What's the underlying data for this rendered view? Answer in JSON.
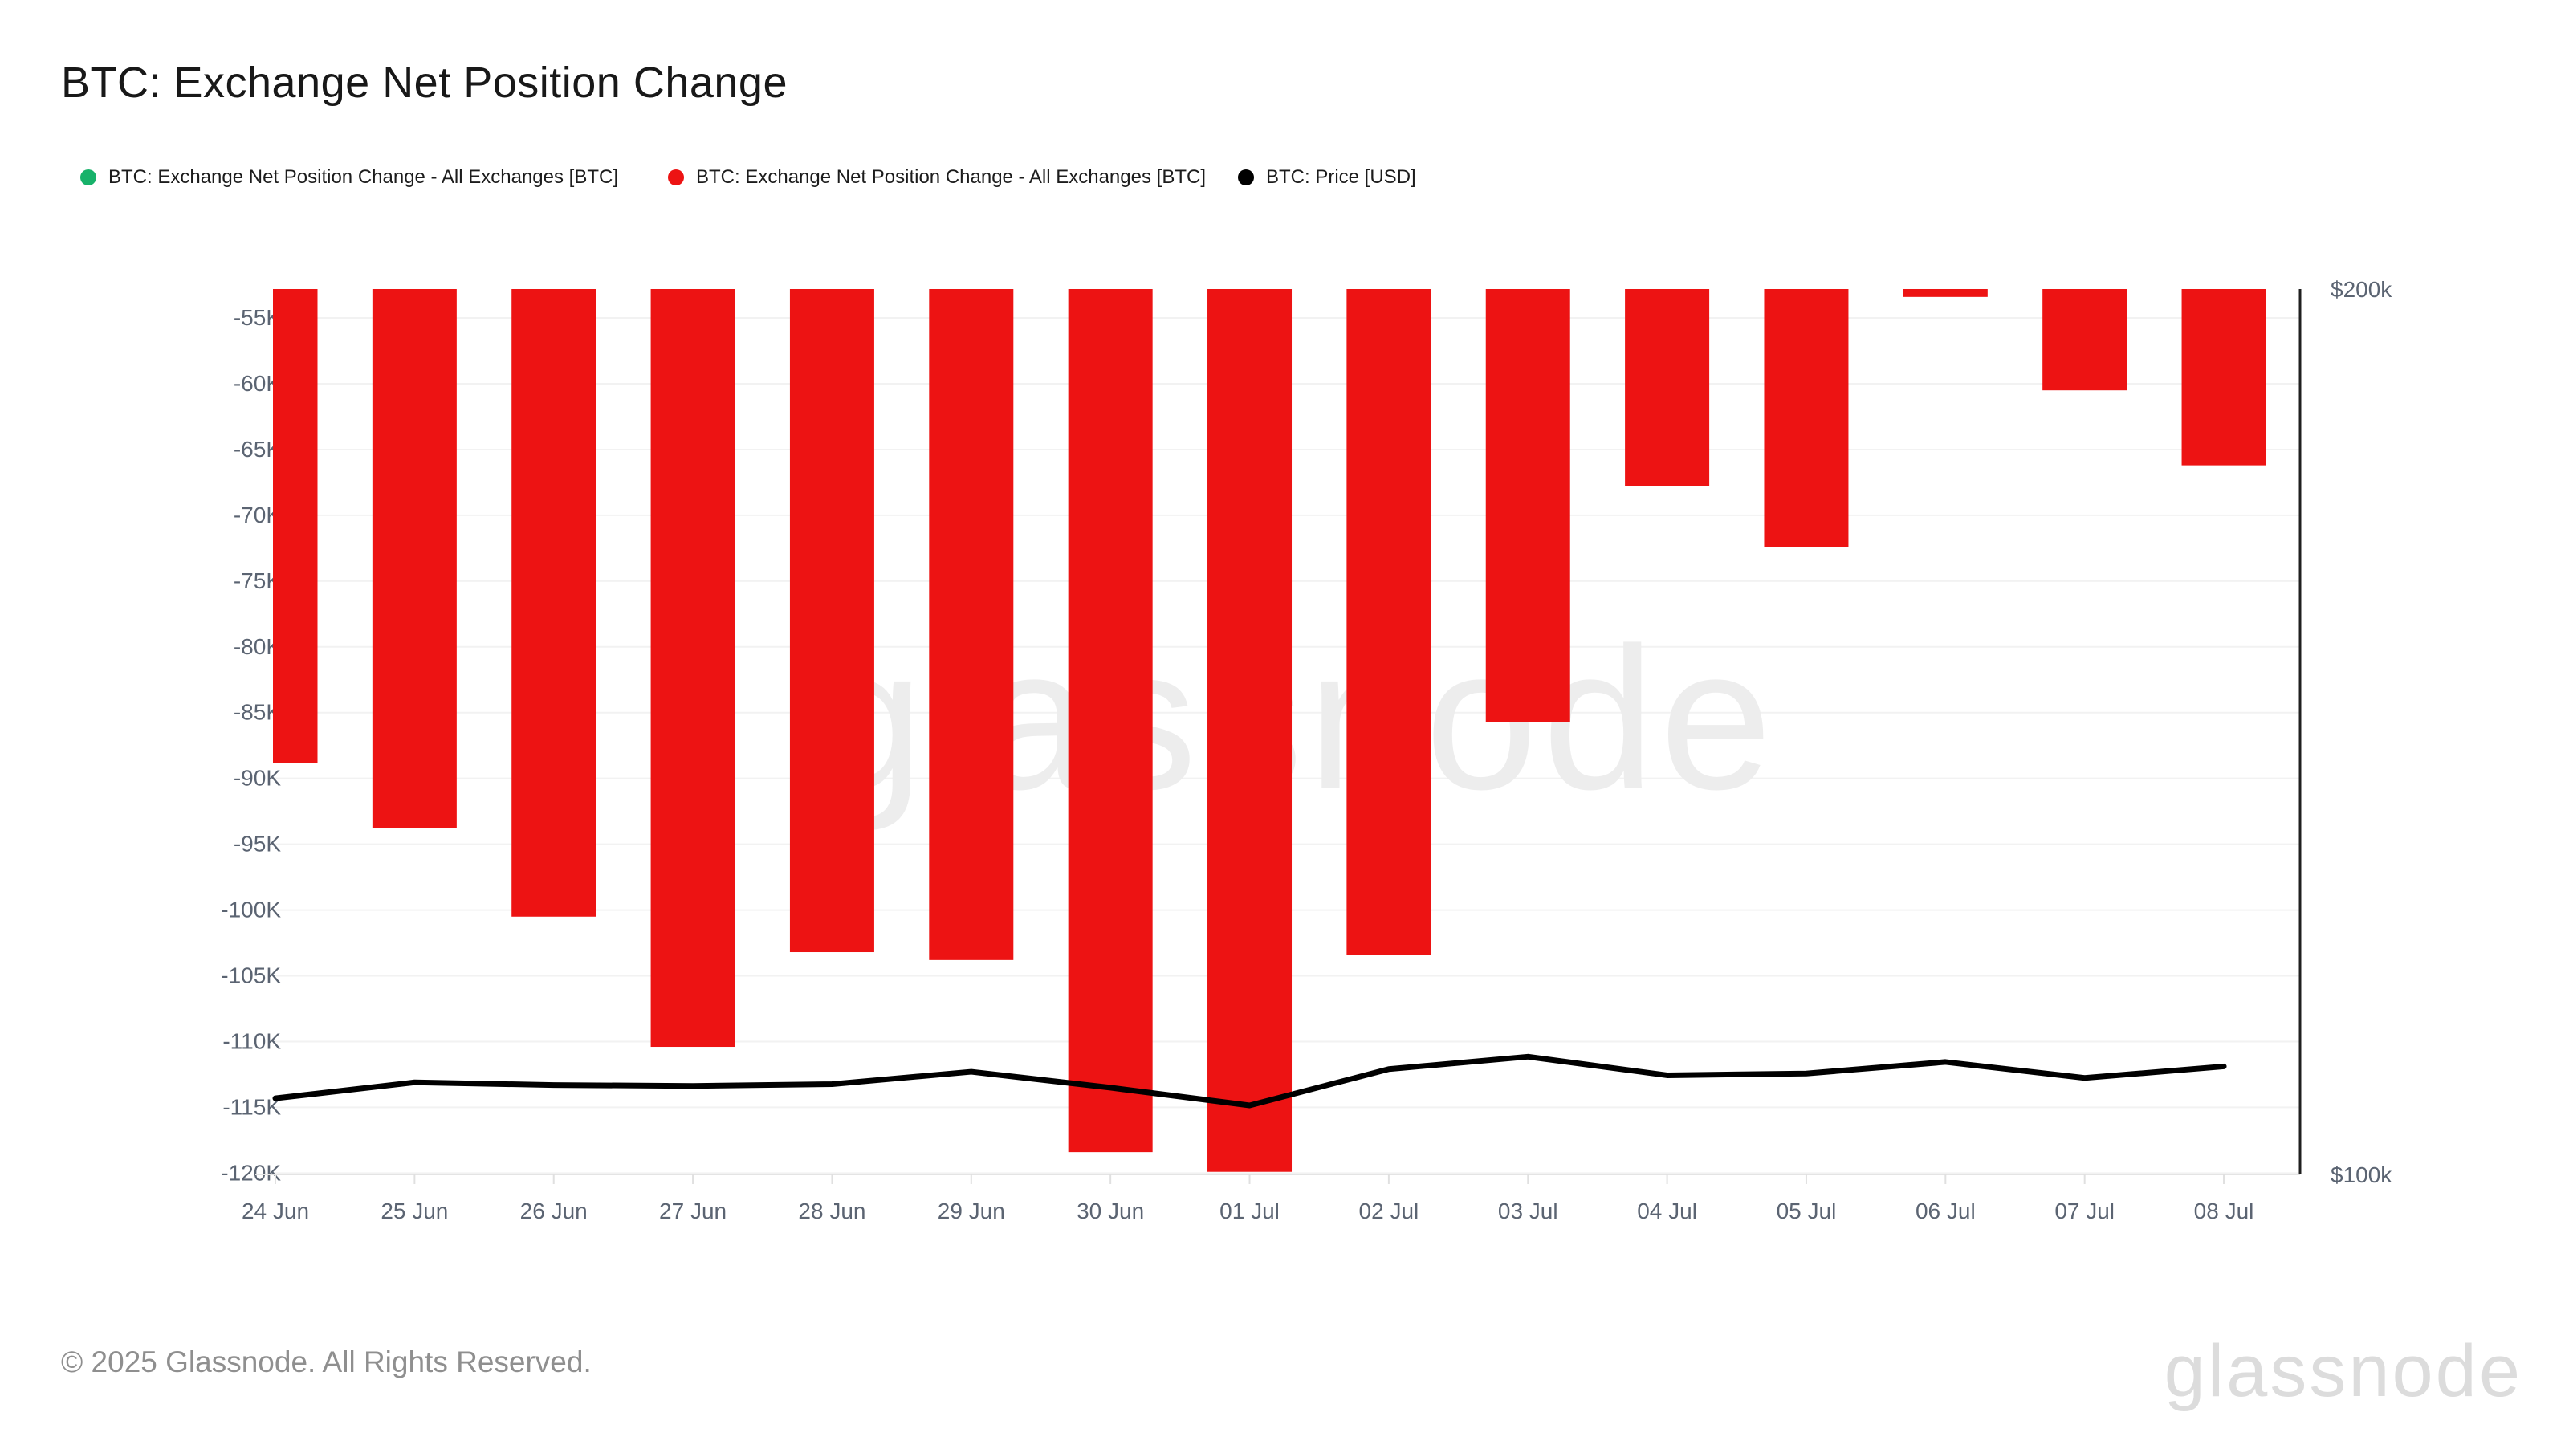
{
  "title": "BTC: Exchange Net Position Change",
  "legend": {
    "items": [
      {
        "label": "BTC: Exchange Net Position Change - All Exchanges [BTC]",
        "color": "#17b26a",
        "icon": "green-dot-icon"
      },
      {
        "label": "BTC: Exchange Net Position Change - All Exchanges [BTC]",
        "color": "#ed1313",
        "icon": "red-dot-icon"
      },
      {
        "label": "BTC: Price [USD]",
        "color": "#000000",
        "icon": "black-dot-icon"
      }
    ]
  },
  "watermark": "glassnode",
  "footer": {
    "copyright": "© 2025 Glassnode. All Rights Reserved.",
    "brand": "glassnode"
  },
  "colors": {
    "bar": "#ed1313",
    "price_line": "#000000",
    "gridline": "#f2f2f2",
    "x_axis_line": "#e4e4e4",
    "x_tick": "#e0e0e0",
    "right_axis_line": "#1f1f1f",
    "axis_label": "#5b6472",
    "watermark": "#ededed"
  },
  "chart_data": {
    "type": "bar",
    "title": "BTC: Exchange Net Position Change",
    "categories": [
      "24 Jun",
      "25 Jun",
      "26 Jun",
      "27 Jun",
      "28 Jun",
      "29 Jun",
      "30 Jun",
      "01 Jul",
      "02 Jul",
      "03 Jul",
      "04 Jul",
      "05 Jul",
      "06 Jul",
      "07 Jul",
      "08 Jul"
    ],
    "series": [
      {
        "name": "BTC: Exchange Net Position Change - All Exchanges [BTC]",
        "type": "bar",
        "color": "#ed1313",
        "unit": "BTC",
        "values": [
          -88800,
          -93800,
          -100500,
          -110400,
          -103200,
          -103800,
          -118400,
          -119900,
          -103400,
          -85700,
          -67800,
          -72400,
          -53400,
          -60500,
          -66200
        ]
      },
      {
        "name": "BTC: Price [USD]",
        "type": "line",
        "color": "#000000",
        "unit": "USD",
        "values": [
          108600,
          110400,
          110100,
          110000,
          110200,
          111600,
          109800,
          107800,
          111900,
          113300,
          111200,
          111400,
          112700,
          110900,
          112200
        ]
      }
    ],
    "left_axis": {
      "tick_values": [
        -55000,
        -60000,
        -65000,
        -70000,
        -75000,
        -80000,
        -85000,
        -90000,
        -95000,
        -100000,
        -105000,
        -110000,
        -115000,
        -120000
      ],
      "tick_labels": [
        "-55K",
        "-60K",
        "-65K",
        "-70K",
        "-75K",
        "-80K",
        "-85K",
        "-90K",
        "-95K",
        "-100K",
        "-105K",
        "-110K",
        "-115K",
        "-120K"
      ],
      "range_top": -52800,
      "range_bottom": -120100,
      "grid": true
    },
    "right_axis": {
      "tick_values": [
        200000,
        100000
      ],
      "tick_labels": [
        "$200k",
        "$100k"
      ],
      "range": [
        100000,
        200000
      ],
      "grid": false
    },
    "legend_position": "top-left"
  }
}
